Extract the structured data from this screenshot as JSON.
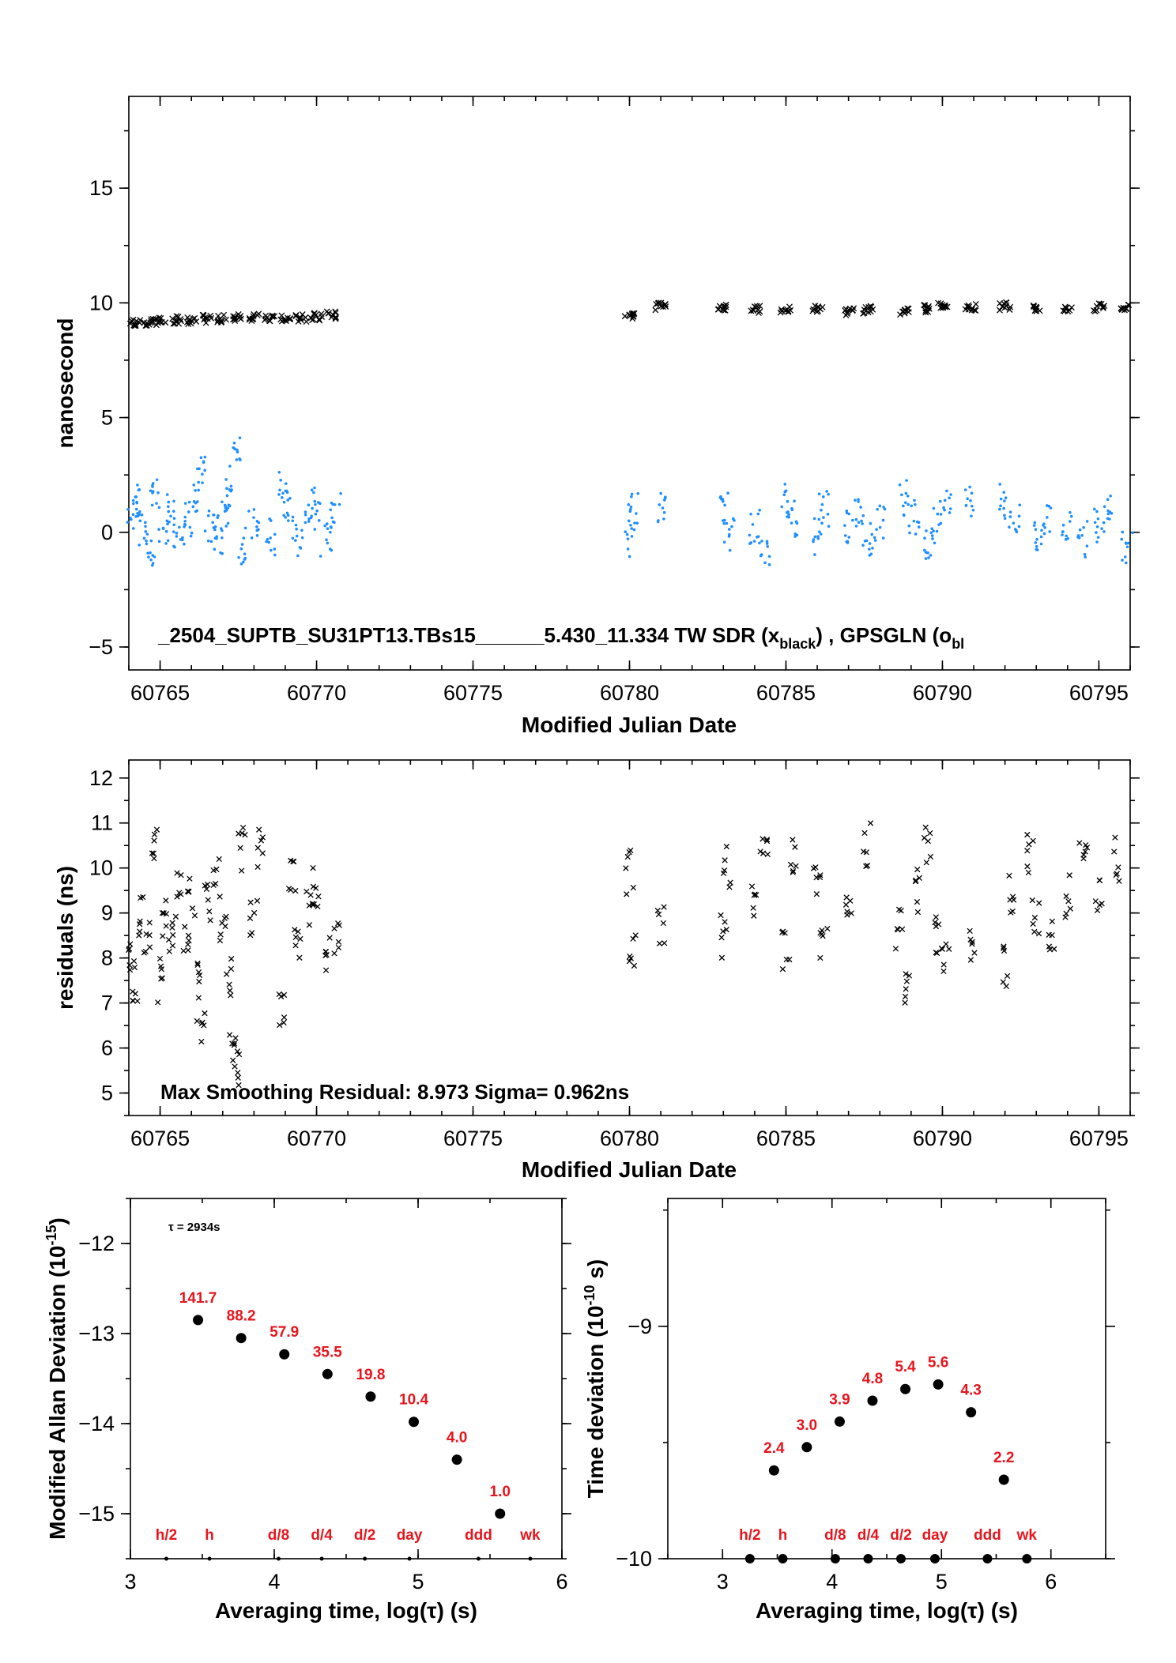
{
  "chart_data": [
    {
      "type": "scatter",
      "xlabel": "Modified Julian Date",
      "ylabel": "nanosecond",
      "xlim": [
        60764,
        60796
      ],
      "ylim": [
        -6,
        19
      ],
      "x_ticks": [
        60765,
        60770,
        60775,
        60780,
        60785,
        60790,
        60795
      ],
      "y_ticks": [
        -5,
        0,
        5,
        10,
        15
      ],
      "annotation": "_2504_SUPTB_SU31PT13.TBs15______5.430_11.334    TW SDR (x",
      "annotation_sub": "black",
      "annotation_tail": ") ,  GPSGLN (o",
      "annotation_sub2": "bl",
      "series": [
        {
          "name": "TW SDR",
          "color": "#000000",
          "marker": "x",
          "points": [
            [
              60764.2,
              9.1
            ],
            [
              60764.6,
              9.15
            ],
            [
              60765.0,
              9.2
            ],
            [
              60765.5,
              9.25
            ],
            [
              60766.0,
              9.25
            ],
            [
              60766.5,
              9.3
            ],
            [
              60767.0,
              9.3
            ],
            [
              60767.5,
              9.35
            ],
            [
              60768.0,
              9.35
            ],
            [
              60768.5,
              9.3
            ],
            [
              60769.0,
              9.3
            ],
            [
              60769.5,
              9.35
            ],
            [
              60770.0,
              9.4
            ],
            [
              60770.5,
              9.45
            ],
            [
              60780.0,
              9.45
            ],
            [
              60781.0,
              9.85
            ],
            [
              60783.0,
              9.8
            ],
            [
              60784.0,
              9.7
            ],
            [
              60785.0,
              9.7
            ],
            [
              60786.0,
              9.7
            ],
            [
              60787.0,
              9.6
            ],
            [
              60787.6,
              9.7
            ],
            [
              60788.8,
              9.65
            ],
            [
              60789.5,
              9.75
            ],
            [
              60790.0,
              9.85
            ],
            [
              60790.9,
              9.8
            ],
            [
              60792.0,
              9.85
            ],
            [
              60793.0,
              9.8
            ],
            [
              60794.0,
              9.8
            ],
            [
              60795.0,
              9.8
            ],
            [
              60795.8,
              9.75
            ]
          ]
        },
        {
          "name": "GPSGLN",
          "color": "#1f8fff",
          "marker": "dot",
          "points": [
            [
              60764.1,
              0.8
            ],
            [
              60764.2,
              1.5
            ],
            [
              60764.4,
              0.2
            ],
            [
              60764.7,
              -0.8
            ],
            [
              60764.8,
              1.8
            ],
            [
              60765.1,
              0.3
            ],
            [
              60765.3,
              1.0
            ],
            [
              60765.6,
              0.0
            ],
            [
              60765.9,
              0.6
            ],
            [
              60766.1,
              1.4
            ],
            [
              60766.3,
              2.6
            ],
            [
              60766.6,
              0.2
            ],
            [
              60766.9,
              -0.4
            ],
            [
              60767.0,
              0.8
            ],
            [
              60767.2,
              1.6
            ],
            [
              60767.4,
              3.5
            ],
            [
              60767.6,
              -0.6
            ],
            [
              60768.0,
              0.3
            ],
            [
              60768.5,
              -0.2
            ],
            [
              60768.9,
              2.2
            ],
            [
              60769.1,
              1.0
            ],
            [
              60769.4,
              -0.3
            ],
            [
              60769.8,
              0.6
            ],
            [
              60770.0,
              1.3
            ],
            [
              60770.3,
              -0.4
            ],
            [
              60770.6,
              1.0
            ],
            [
              60780.0,
              -0.3
            ],
            [
              60780.1,
              1.0
            ],
            [
              60781.0,
              1.0
            ],
            [
              60783.0,
              1.0
            ],
            [
              60783.2,
              -0.2
            ],
            [
              60784.0,
              0.3
            ],
            [
              60784.3,
              -0.8
            ],
            [
              60785.0,
              1.3
            ],
            [
              60785.2,
              0.6
            ],
            [
              60786.0,
              -0.2
            ],
            [
              60786.2,
              1.0
            ],
            [
              60787.0,
              0.2
            ],
            [
              60787.3,
              0.8
            ],
            [
              60787.6,
              -0.4
            ],
            [
              60788.0,
              0.4
            ],
            [
              60788.8,
              1.5
            ],
            [
              60789.1,
              0.6
            ],
            [
              60789.5,
              -0.6
            ],
            [
              60789.8,
              0.3
            ],
            [
              60790.1,
              1.4
            ],
            [
              60790.9,
              1.2
            ],
            [
              60792.0,
              1.4
            ],
            [
              60792.3,
              0.4
            ],
            [
              60793.0,
              -0.2
            ],
            [
              60793.3,
              0.6
            ],
            [
              60794.0,
              0.3
            ],
            [
              60794.5,
              -0.3
            ],
            [
              60795.0,
              0.3
            ],
            [
              60795.3,
              0.8
            ],
            [
              60795.9,
              -0.6
            ]
          ]
        }
      ]
    },
    {
      "type": "scatter",
      "xlabel": "Modified Julian Date",
      "ylabel": "residuals (ns)",
      "xlim": [
        60764,
        60796
      ],
      "ylim": [
        4.5,
        12.4
      ],
      "x_ticks": [
        60765,
        60770,
        60775,
        60780,
        60785,
        60790,
        60795
      ],
      "y_ticks": [
        5,
        6,
        7,
        8,
        9,
        10,
        11,
        12
      ],
      "annotation": "Max Smoothing Residual: 8.973  Sigma= 0.962ns",
      "series": [
        {
          "name": "residuals",
          "color": "#000000",
          "marker": "x",
          "points": [
            [
              60764.1,
              8.0
            ],
            [
              60764.2,
              7.4
            ],
            [
              60764.4,
              9.0
            ],
            [
              60764.6,
              8.5
            ],
            [
              60764.8,
              10.5
            ],
            [
              60765.0,
              7.5
            ],
            [
              60765.1,
              8.9
            ],
            [
              60765.4,
              8.6
            ],
            [
              60765.6,
              9.4
            ],
            [
              60765.8,
              8.3
            ],
            [
              60766.0,
              9.4
            ],
            [
              60766.2,
              7.5
            ],
            [
              60766.3,
              6.6
            ],
            [
              60766.5,
              9.2
            ],
            [
              60766.8,
              9.8
            ],
            [
              60767.0,
              8.5
            ],
            [
              60767.2,
              7.5
            ],
            [
              60767.3,
              6.0
            ],
            [
              60767.4,
              5.6
            ],
            [
              60767.6,
              10.4
            ],
            [
              60768.0,
              9.0
            ],
            [
              60768.2,
              10.5
            ],
            [
              60768.9,
              7.0
            ],
            [
              60769.2,
              9.7
            ],
            [
              60769.4,
              8.5
            ],
            [
              60769.8,
              9.0
            ],
            [
              60770.0,
              9.6
            ],
            [
              60770.3,
              8.0
            ],
            [
              60770.6,
              8.3
            ],
            [
              60780.0,
              9.9
            ],
            [
              60780.1,
              8.3
            ],
            [
              60781.0,
              8.8
            ],
            [
              60783.0,
              8.5
            ],
            [
              60783.1,
              10.0
            ],
            [
              60784.0,
              9.3
            ],
            [
              60784.3,
              10.8
            ],
            [
              60785.0,
              8.2
            ],
            [
              60785.2,
              10.4
            ],
            [
              60786.0,
              9.8
            ],
            [
              60786.2,
              8.5
            ],
            [
              60787.0,
              9.3
            ],
            [
              60787.6,
              10.5
            ],
            [
              60788.6,
              8.6
            ],
            [
              60788.9,
              7.4
            ],
            [
              60789.2,
              9.5
            ],
            [
              60789.5,
              10.5
            ],
            [
              60789.8,
              8.5
            ],
            [
              60790.1,
              7.9
            ],
            [
              60790.9,
              8.4
            ],
            [
              60792.0,
              7.8
            ],
            [
              60792.2,
              9.4
            ],
            [
              60792.8,
              10.3
            ],
            [
              60793.0,
              8.8
            ],
            [
              60793.5,
              8.5
            ],
            [
              60794.0,
              9.4
            ],
            [
              60794.5,
              10.3
            ],
            [
              60795.0,
              9.5
            ],
            [
              60795.6,
              10.2
            ]
          ]
        }
      ]
    },
    {
      "type": "scatter",
      "xlabel": "Averaging time, log(τ) (s)",
      "ylabel": "Modified Allan Deviation (10",
      "ylabel_sup": "-15",
      "ylabel_tail": ")",
      "xlim": [
        3,
        6
      ],
      "ylim": [
        -15.5,
        -11.5
      ],
      "x_ticks": [
        3,
        4,
        5,
        6
      ],
      "y_ticks": [
        -12,
        -13,
        -14,
        -15
      ],
      "annotation": "τ = 2934s",
      "points": [
        [
          3.47,
          -12.85
        ],
        [
          3.77,
          -13.05
        ],
        [
          4.07,
          -13.23
        ],
        [
          4.37,
          -13.45
        ],
        [
          4.67,
          -13.7
        ],
        [
          4.97,
          -13.98
        ],
        [
          5.27,
          -14.4
        ],
        [
          5.57,
          -15.0
        ]
      ],
      "point_labels": [
        "141.7",
        "88.2",
        "57.9",
        "35.5",
        "19.8",
        "10.4",
        "4.0",
        "1.0"
      ],
      "marker_ticks": [
        3.25,
        3.55,
        4.03,
        4.33,
        4.63,
        4.94,
        5.42,
        5.78
      ],
      "marker_labels": [
        "h/2",
        "h",
        "d/8",
        "d/4",
        "d/2",
        "day",
        "ddd",
        "wk"
      ]
    },
    {
      "type": "scatter",
      "xlabel": "Averaging time, log(τ) (s)",
      "ylabel": "Time deviation (10",
      "ylabel_sup": "-10",
      "ylabel_tail": " s)",
      "xlim": [
        2.5,
        6.5
      ],
      "ylim": [
        -10,
        -8.45
      ],
      "x_ticks": [
        3,
        4,
        5,
        6
      ],
      "y_ticks": [
        -9,
        -10
      ],
      "points": [
        [
          3.47,
          -9.62
        ],
        [
          3.77,
          -9.52
        ],
        [
          4.07,
          -9.41
        ],
        [
          4.37,
          -9.32
        ],
        [
          4.67,
          -9.27
        ],
        [
          4.97,
          -9.25
        ],
        [
          5.27,
          -9.37
        ],
        [
          5.57,
          -9.66
        ]
      ],
      "point_labels": [
        "2.4",
        "3.0",
        "3.9",
        "4.8",
        "5.4",
        "5.6",
        "4.3",
        "2.2"
      ],
      "marker_ticks": [
        3.25,
        3.55,
        4.03,
        4.33,
        4.63,
        4.94,
        5.42,
        5.78
      ],
      "marker_labels": [
        "h/2",
        "h",
        "d/8",
        "d/4",
        "d/2",
        "day",
        "ddd",
        "wk"
      ]
    }
  ]
}
